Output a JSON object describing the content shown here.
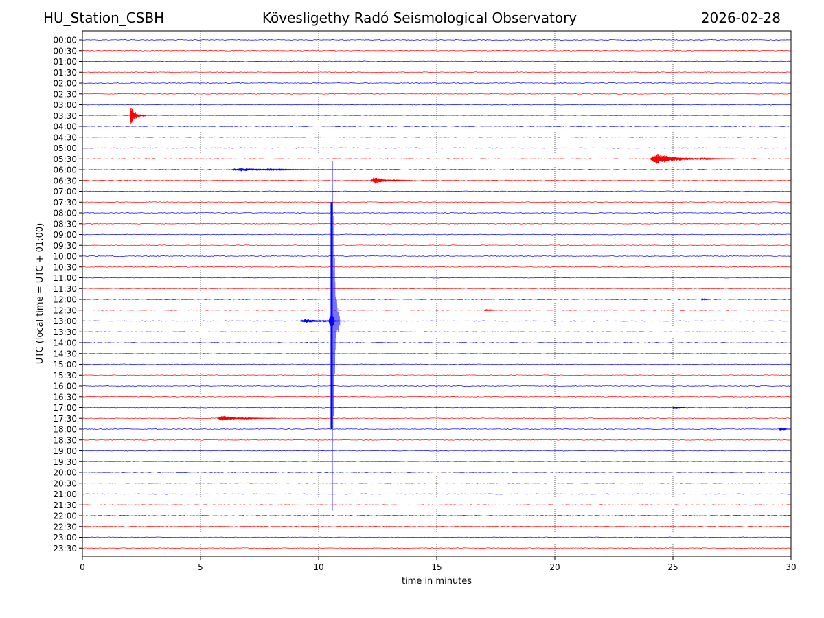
{
  "header": {
    "station": "HU_Station_CSBH",
    "observatory": "Kövesligethy Radó Seismological Observatory",
    "date": "2026-02-28"
  },
  "colors": {
    "even_trace": "#0000ff",
    "odd_trace": "#ff0000",
    "axis": "#000000",
    "grid": "#000000"
  },
  "chart_data": {
    "type": "helicorder",
    "title": "Kövesligethy Radó Seismological Observatory",
    "xlabel": "time in minutes",
    "ylabel": "UTC (local time = UTC + 01:00)",
    "xlim": [
      0,
      30
    ],
    "xticks": [
      0,
      5,
      10,
      15,
      20,
      25,
      30
    ],
    "x_tick_labels": [
      "0",
      "5",
      "10",
      "15",
      "20",
      "25",
      "30"
    ],
    "grid": "vertical dotted at x ticks",
    "rows": [
      "00:00",
      "00:30",
      "01:00",
      "01:30",
      "02:00",
      "02:30",
      "03:00",
      "03:30",
      "04:00",
      "04:30",
      "05:00",
      "05:30",
      "06:00",
      "06:30",
      "07:00",
      "07:30",
      "08:00",
      "08:30",
      "09:00",
      "09:30",
      "10:00",
      "10:30",
      "11:00",
      "11:30",
      "12:00",
      "12:30",
      "13:00",
      "13:30",
      "14:00",
      "14:30",
      "15:00",
      "15:30",
      "16:00",
      "16:30",
      "17:00",
      "17:30",
      "18:00",
      "18:30",
      "19:00",
      "19:30",
      "20:00",
      "20:30",
      "21:00",
      "21:30",
      "22:00",
      "22:30",
      "23:00",
      "23:30"
    ],
    "trace_colors": [
      "blue",
      "red"
    ],
    "events": [
      {
        "row": "03:30",
        "start_min": 2.0,
        "duration_min": 0.7,
        "peak_amplitude_rows": 1.0
      },
      {
        "row": "05:30",
        "start_min": 24.0,
        "duration_min": 3.6,
        "peak_amplitude_rows": 0.5
      },
      {
        "row": "06:00",
        "start_min": 6.3,
        "duration_min": 5.0,
        "peak_amplitude_rows": 0.15
      },
      {
        "row": "06:30",
        "start_min": 12.2,
        "duration_min": 1.8,
        "peak_amplitude_rows": 0.35
      },
      {
        "row": "13:00",
        "start_min": 10.55,
        "duration_min": 0.35,
        "peak_amplitude_rows": 20.0,
        "note": "large earthquake signal spanning many rows"
      },
      {
        "row": "13:00",
        "start_min": 9.2,
        "duration_min": 2.8,
        "peak_amplitude_rows": 0.18
      },
      {
        "row": "17:30",
        "start_min": 5.7,
        "duration_min": 2.5,
        "peak_amplitude_rows": 0.25
      },
      {
        "row": "18:00",
        "start_min": 29.5,
        "duration_min": 0.5,
        "peak_amplitude_rows": 0.15
      },
      {
        "row": "12:00",
        "start_min": 26.2,
        "duration_min": 0.4,
        "peak_amplitude_rows": 0.15
      },
      {
        "row": "12:30",
        "start_min": 17.0,
        "duration_min": 0.8,
        "peak_amplitude_rows": 0.12
      },
      {
        "row": "17:00",
        "start_min": 25.0,
        "duration_min": 0.5,
        "peak_amplitude_rows": 0.12
      }
    ],
    "noise_amplitude_rows": 0.04
  }
}
